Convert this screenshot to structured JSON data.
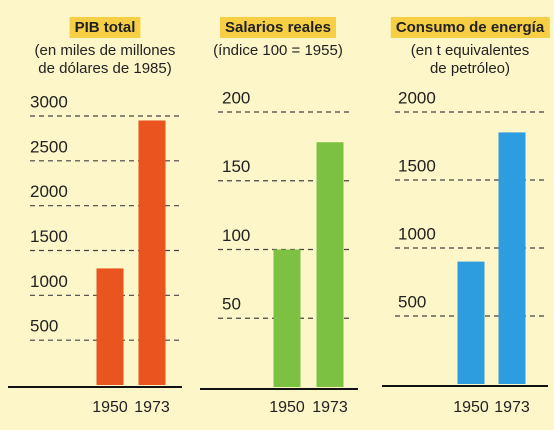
{
  "chart_data": [
    {
      "type": "bar",
      "title": "PIB total",
      "subtitle": [
        "(en miles de millones",
        "de dólares de 1985)"
      ],
      "categories": [
        "1950",
        "1973"
      ],
      "values": [
        1300,
        2950
      ],
      "color": "#e9541f",
      "ylim": [
        0,
        3000
      ],
      "yticks": [
        500,
        1000,
        1500,
        2000,
        2500,
        3000
      ],
      "grid": true
    },
    {
      "type": "bar",
      "title": "Salarios reales",
      "subtitle": [
        "(índice 100 = 1955)"
      ],
      "categories": [
        "1950",
        "1973"
      ],
      "values": [
        100,
        178
      ],
      "color": "#7dc142",
      "ylim": [
        0,
        200
      ],
      "yticks": [
        50,
        100,
        150,
        200
      ],
      "grid": true
    },
    {
      "type": "bar",
      "title": "Consumo de energía",
      "subtitle": [
        "(en t equivalentes",
        "de petróleo)"
      ],
      "categories": [
        "1950",
        "1973"
      ],
      "values": [
        900,
        1850
      ],
      "color": "#2e9de0",
      "ylim": [
        0,
        2000
      ],
      "yticks": [
        500,
        1000,
        1500,
        2000
      ],
      "grid": true
    }
  ]
}
